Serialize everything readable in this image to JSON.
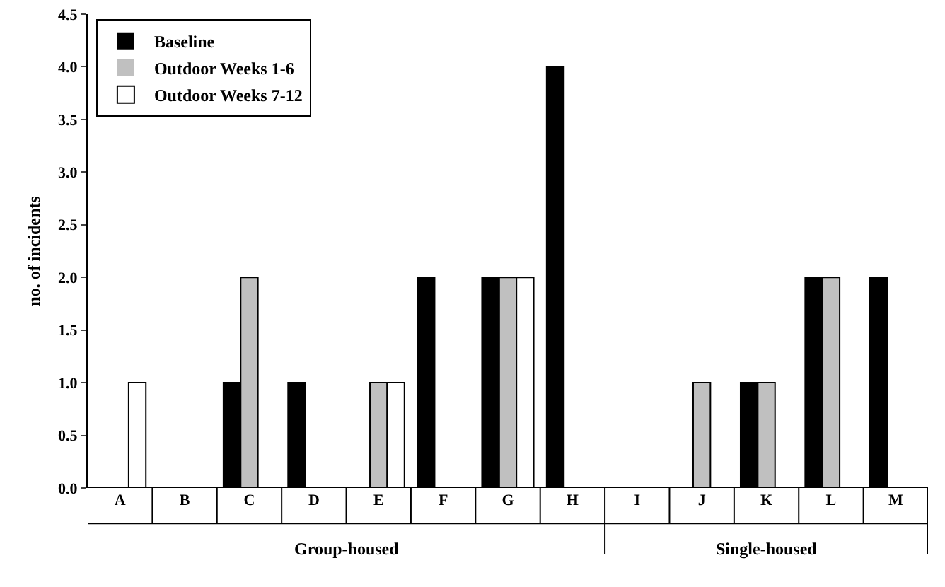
{
  "chart_data": {
    "type": "bar",
    "ylabel": "no. of incidents",
    "categories": [
      "A",
      "B",
      "C",
      "D",
      "E",
      "F",
      "G",
      "H",
      "I",
      "J",
      "K",
      "L",
      "M"
    ],
    "series": [
      {
        "name": "Baseline",
        "color": "#000000",
        "values": [
          0,
          0,
          1,
          1,
          0,
          2,
          2,
          4,
          0,
          0,
          1,
          2,
          2
        ]
      },
      {
        "name": "Outdoor Weeks 1-6",
        "color": "#c0c0c0",
        "values": [
          0,
          0,
          2,
          0,
          1,
          0,
          2,
          0,
          0,
          1,
          1,
          2,
          0
        ]
      },
      {
        "name": "Outdoor Weeks 7-12",
        "color": "#ffffff",
        "values": [
          1,
          0,
          0,
          0,
          1,
          0,
          2,
          0,
          0,
          0,
          0,
          0,
          0
        ]
      }
    ],
    "ylim": [
      0,
      4.5
    ],
    "yticks": [
      {
        "value": 0,
        "label": "0.0"
      },
      {
        "value": 0.5,
        "label": "0.5"
      },
      {
        "value": 1,
        "label": "1.0"
      },
      {
        "value": 1.5,
        "label": "1.5"
      },
      {
        "value": 2,
        "label": "2.0"
      },
      {
        "value": 2.5,
        "label": "2.5"
      },
      {
        "value": 3,
        "label": "3.0"
      },
      {
        "value": 3.5,
        "label": "3.5"
      },
      {
        "value": 4,
        "label": "4.0"
      },
      {
        "value": 4.5,
        "label": "4.5"
      }
    ],
    "grid": false,
    "legend": "top left",
    "annotations": [
      "Group-housed",
      "Single-housed"
    ]
  }
}
